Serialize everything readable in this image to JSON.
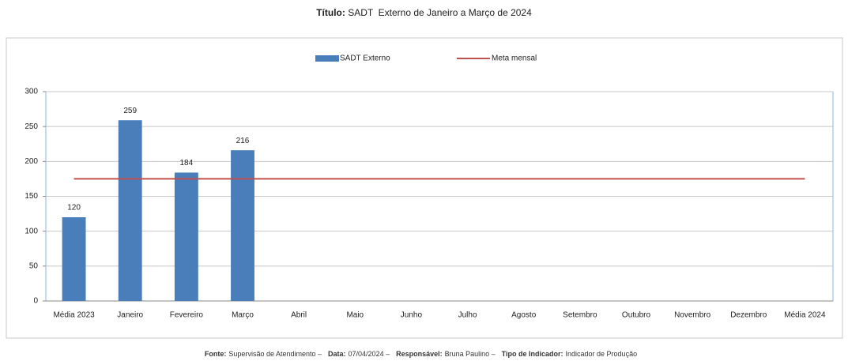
{
  "chart_data": {
    "type": "bar",
    "title_label": "Título:",
    "title": "SADT  Externo de Janeiro a Março de 2024",
    "categories": [
      "Média 2023",
      "Janeiro",
      "Fevereiro",
      "Março",
      "Abril",
      "Maio",
      "Junho",
      "Julho",
      "Agosto",
      "Setembro",
      "Outubro",
      "Novembro",
      "Dezembro",
      "Média 2024"
    ],
    "series": [
      {
        "name": "SADT Externo",
        "type": "bar",
        "color": "#4a7ebb",
        "values": [
          120,
          259,
          184,
          216,
          null,
          null,
          null,
          null,
          null,
          null,
          null,
          null,
          null,
          null
        ]
      },
      {
        "name": "Meta mensal",
        "type": "line",
        "color": "#c0504d",
        "values": [
          175,
          175,
          175,
          175,
          175,
          175,
          175,
          175,
          175,
          175,
          175,
          175,
          175,
          175
        ]
      }
    ],
    "ylim": [
      0,
      300
    ],
    "yticks": [
      0,
      50,
      100,
      150,
      200,
      250,
      300
    ],
    "grid": true,
    "legend": "top",
    "footer": [
      {
        "label": "Fonte:",
        "text": "Supervisão de Atendimento –"
      },
      {
        "label": "Data:",
        "text": "07/04/2024 –"
      },
      {
        "label": "Responsável:",
        "text": "Bruna Paulino –"
      },
      {
        "label": "Tipo de Indicador:",
        "text": "Indicador de Produção"
      }
    ]
  }
}
